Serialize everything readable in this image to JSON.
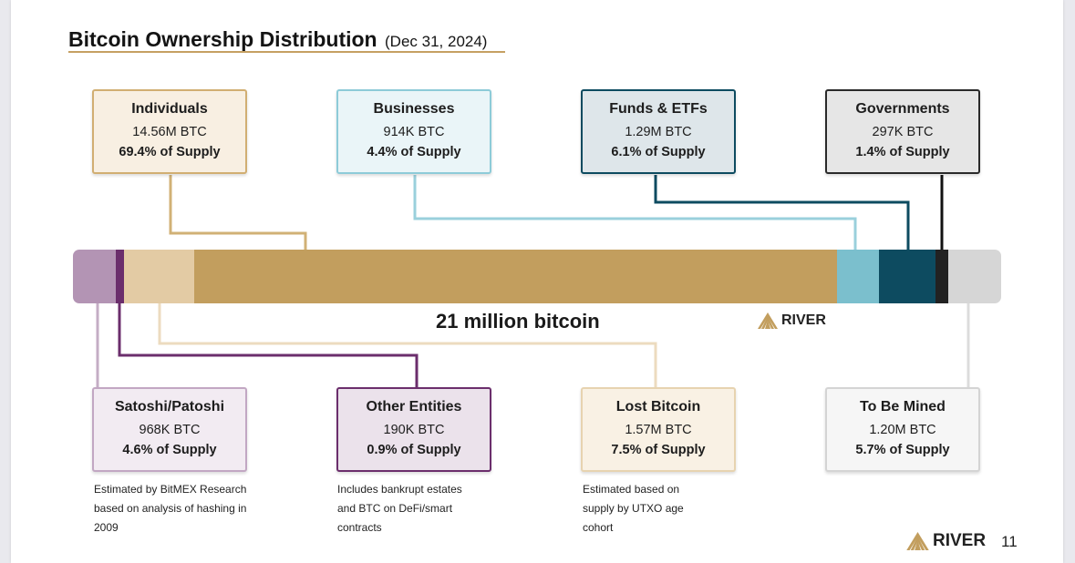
{
  "title": "Bitcoin Ownership Distribution",
  "title_date": "(Dec 31, 2024)",
  "bar_caption": "21 million bitcoin",
  "brand": "RIVER",
  "page_number": "11",
  "colors": {
    "satoshi": "#b394b4",
    "other_entities": "#6b2e6c",
    "lost": "#e3cba4",
    "individuals": "#c29e5e",
    "businesses": "#7bbfcd",
    "funds": "#0d4b60",
    "governments": "#222222",
    "to_be_mined": "#d6d6d6"
  },
  "top_boxes": [
    {
      "name": "Individuals",
      "btc": "14.56M BTC",
      "pct": "69.4% of Supply"
    },
    {
      "name": "Businesses",
      "btc": "914K BTC",
      "pct": "4.4% of Supply"
    },
    {
      "name": "Funds & ETFs",
      "btc": "1.29M BTC",
      "pct": "6.1% of Supply"
    },
    {
      "name": "Governments",
      "btc": "297K BTC",
      "pct": "1.4% of Supply"
    }
  ],
  "bottom_boxes": [
    {
      "name": "Satoshi/Patoshi",
      "btc": "968K BTC",
      "pct": "4.6% of Supply",
      "note": "Estimated by BitMEX Research based on analysis of hashing in 2009"
    },
    {
      "name": "Other Entities",
      "btc": "190K BTC",
      "pct": "0.9% of Supply",
      "note": "Includes bankrupt estates and BTC on DeFi/smart contracts"
    },
    {
      "name": "Lost Bitcoin",
      "btc": "1.57M BTC",
      "pct": "7.5% of Supply",
      "note": "Estimated based on supply by UTXO age cohort"
    },
    {
      "name": "To Be Mined",
      "btc": "1.20M BTC",
      "pct": "5.7% of Supply",
      "note": ""
    }
  ]
}
